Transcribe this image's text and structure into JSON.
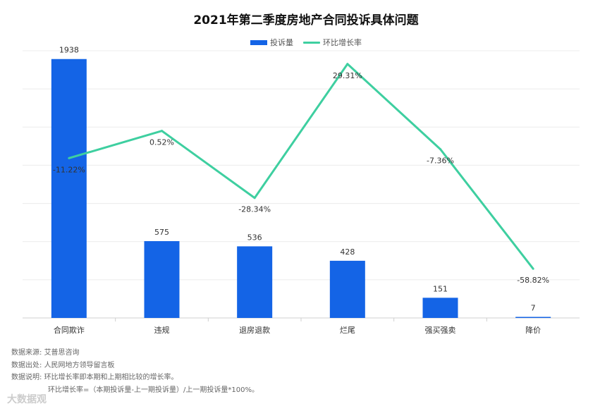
{
  "chart_data": {
    "type": "bar",
    "title": "2021年第二季度房地产合同投诉具体问题",
    "categories": [
      "合同欺诈",
      "违规",
      "退房退款",
      "烂尾",
      "强买强卖",
      "降价"
    ],
    "series": [
      {
        "name": "投诉量",
        "kind": "bar",
        "color": "#1464e6",
        "values": [
          1938,
          575,
          536,
          428,
          151,
          7
        ],
        "labels": [
          "1938",
          "575",
          "536",
          "428",
          "151",
          "7"
        ]
      },
      {
        "name": "环比增长率",
        "kind": "line",
        "color": "#3ecfa0",
        "values": [
          -11.22,
          0.52,
          -28.34,
          29.31,
          -7.36,
          -58.82
        ],
        "labels": [
          "-11.22%",
          "0.52%",
          "-28.34%",
          "29.31%",
          "-7.36%",
          "-58.82%"
        ]
      }
    ],
    "ylim_bar": [
      0,
      2000
    ],
    "ylim_line": [
      -80,
      35
    ],
    "grid": true,
    "legend_position": "top-center"
  },
  "notes": {
    "source_label": "数据来源:",
    "source_value": "艾普思咨询",
    "origin_label": "数据出处:",
    "origin_value": "人民网地方领导留言板",
    "explain_label": "数据说明:",
    "explain_line1": "环比增长率即本期和上期相比较的增长率。",
    "explain_line2": "环比增长率=（本期投诉量-上一期投诉量）/上一期投诉量*100%。"
  },
  "brand_watermark": "大数据观"
}
